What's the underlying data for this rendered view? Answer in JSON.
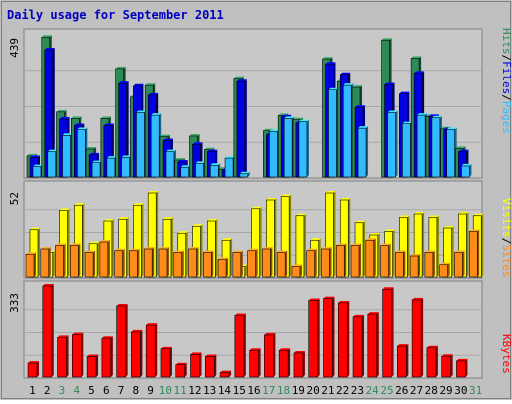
{
  "chart_data": [
    {
      "type": "bar",
      "title": "Daily usage for September 2011",
      "panel": "pages-files-hits",
      "categories": [
        "1",
        "2",
        "3",
        "4",
        "5",
        "6",
        "7",
        "8",
        "9",
        "10",
        "11",
        "12",
        "13",
        "14",
        "15",
        "16",
        "17",
        "18",
        "19",
        "20",
        "21",
        "22",
        "23",
        "24",
        "25",
        "26",
        "27",
        "28",
        "29",
        "30",
        "31"
      ],
      "weekend_days": [
        "3",
        "4",
        "10",
        "11",
        "17",
        "18",
        "24",
        "25",
        "31"
      ],
      "ymax_label": "439",
      "ylim": [
        0,
        439
      ],
      "side_labels": [
        "Pages",
        "Files",
        "Hits"
      ],
      "series": [
        {
          "name": "Hits",
          "color": "#2e8b57",
          "values": [
            65,
            429,
            200,
            180,
            86,
            180,
            332,
            246,
            282,
            124,
            52,
            126,
            84,
            24,
            302,
            0,
            142,
            189,
            176,
            0,
            362,
            294,
            276,
            0,
            420,
            0,
            364,
            186,
            148,
            88,
            0
          ]
        },
        {
          "name": "Files",
          "color": "#0000e0",
          "values": [
            60,
            390,
            178,
            158,
            68,
            158,
            288,
            280,
            252,
            112,
            46,
            100,
            78,
            20,
            294,
            0,
            130,
            185,
            166,
            0,
            346,
            314,
            214,
            0,
            284,
            256,
            318,
            186,
            146,
            78,
            0
          ]
        },
        {
          "name": "Pages",
          "color": "#33bbff",
          "values": [
            32,
            78,
            128,
            146,
            44,
            58,
            60,
            198,
            190,
            78,
            30,
            42,
            36,
            58,
            10,
            0,
            140,
            180,
            170,
            0,
            268,
            282,
            150,
            0,
            198,
            164,
            190,
            182,
            146,
            34,
            0
          ]
        }
      ]
    },
    {
      "type": "bar",
      "panel": "visits-sites",
      "categories": [
        "1",
        "2",
        "3",
        "4",
        "5",
        "6",
        "7",
        "8",
        "9",
        "10",
        "11",
        "12",
        "13",
        "14",
        "15",
        "16",
        "17",
        "18",
        "19",
        "20",
        "21",
        "22",
        "23",
        "24",
        "25",
        "26",
        "27",
        "28",
        "29",
        "30",
        "31"
      ],
      "ymax_label": "52",
      "ylim": [
        0,
        52
      ],
      "side_labels": [
        "Sites",
        "Visits"
      ],
      "series": [
        {
          "name": "Visits",
          "color": "#ffff00",
          "values": [
            27,
            14,
            38,
            41,
            19,
            32,
            33,
            41,
            48,
            33,
            25,
            29,
            32,
            21,
            6,
            39,
            44,
            46,
            35,
            21,
            48,
            44,
            31,
            24,
            26,
            34,
            36,
            34,
            28,
            36,
            35
          ]
        },
        {
          "name": "Sites",
          "color": "#ff8c1a",
          "values": [
            13,
            16,
            18,
            18,
            14,
            20,
            15,
            15,
            16,
            16,
            14,
            16,
            14,
            10,
            14,
            15,
            16,
            14,
            6,
            15,
            16,
            18,
            18,
            21,
            18,
            14,
            12,
            14,
            7,
            14,
            26
          ]
        }
      ]
    },
    {
      "type": "bar",
      "panel": "kbytes",
      "categories": [
        "1",
        "2",
        "3",
        "4",
        "5",
        "6",
        "7",
        "8",
        "9",
        "10",
        "11",
        "12",
        "13",
        "14",
        "15",
        "16",
        "17",
        "18",
        "19",
        "20",
        "21",
        "22",
        "23",
        "24",
        "25",
        "26",
        "27",
        "28",
        "29",
        "30",
        "31"
      ],
      "ymax_label": "333",
      "ylim": [
        0,
        333
      ],
      "side_labels": [
        "KBytes"
      ],
      "series": [
        {
          "name": "KBytes",
          "color": "#ff0000",
          "values": [
            51,
            333,
            145,
            155,
            75,
            142,
            260,
            165,
            190,
            103,
            45,
            83,
            75,
            16,
            225,
            98,
            154,
            98,
            88,
            280,
            287,
            271,
            220,
            230,
            321,
            113,
            282,
            107,
            76,
            59,
            0
          ]
        }
      ]
    }
  ],
  "colors": {
    "background": "#c0c0c0",
    "plot_background": "#c8c8c8",
    "title": "#0000c0",
    "weekday_label": "#000000",
    "weekend_label": "#2e8b57",
    "pages_label": "#33bbff",
    "files_label": "#0000e0",
    "hits_label": "#2e8b57",
    "sites_label": "#ff8c1a",
    "visits_label": "#ffff00",
    "kbytes_label": "#ff0000",
    "separator": "#000000"
  }
}
